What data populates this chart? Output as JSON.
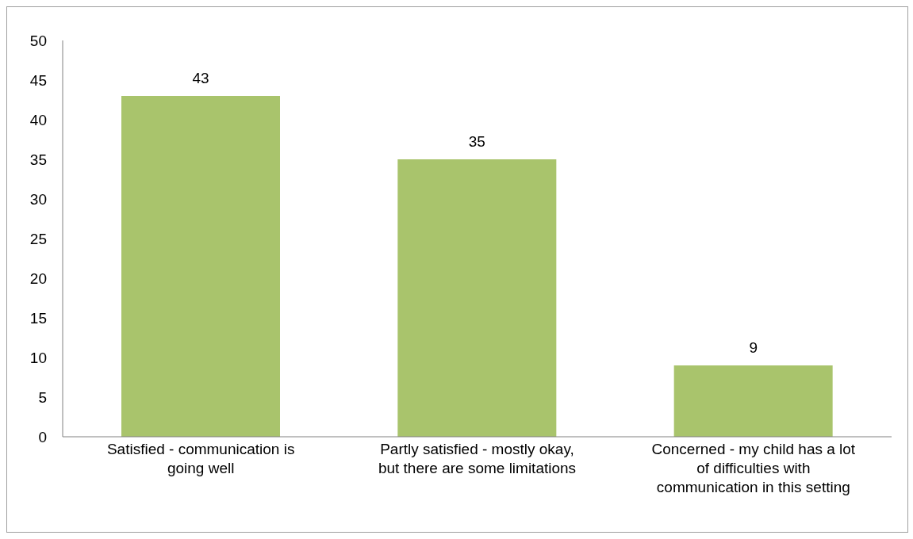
{
  "chart_data": {
    "type": "bar",
    "categories": [
      "Satisfied - communication is going well",
      "Partly satisfied - mostly okay, but there are some limitations",
      "Concerned - my child has a lot of difficulties with communication in this setting"
    ],
    "values": [
      43,
      35,
      9
    ],
    "color": "#a9c46c",
    "ylim": [
      0,
      50
    ],
    "yticks": [
      0,
      5,
      10,
      15,
      20,
      25,
      30,
      35,
      40,
      45,
      50
    ],
    "grid": false,
    "data_labels": true
  }
}
